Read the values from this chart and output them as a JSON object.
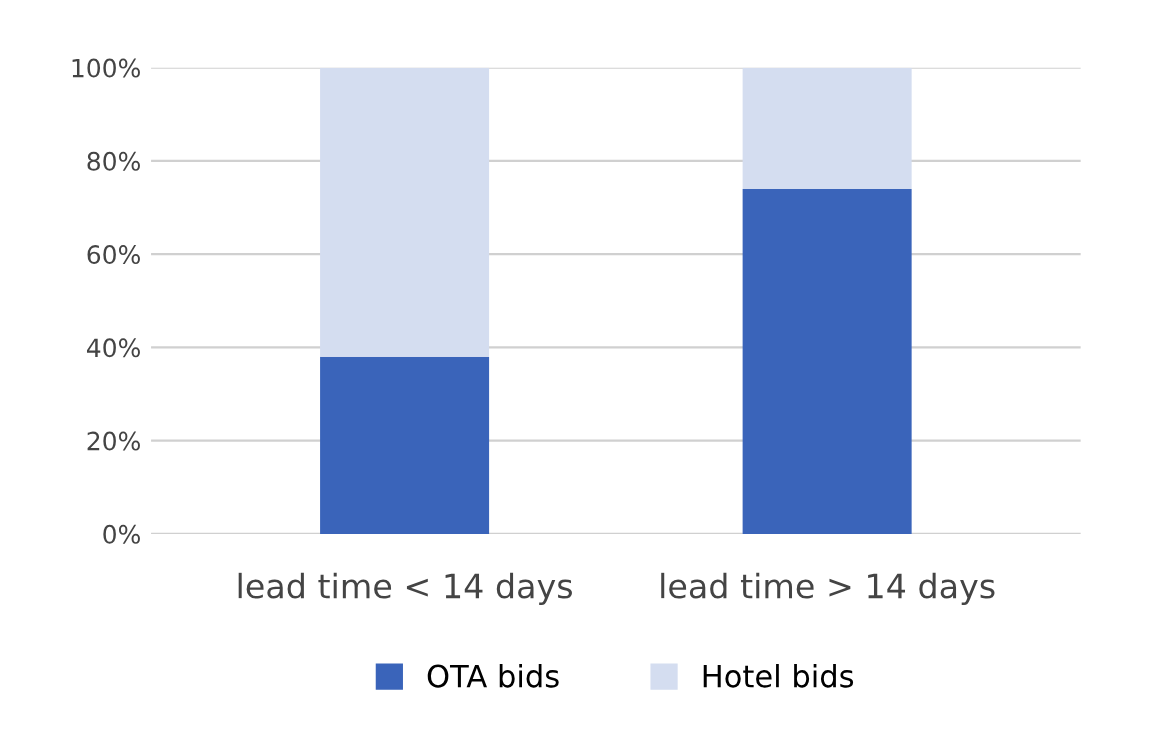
{
  "chart_data": {
    "type": "bar",
    "stacked": true,
    "categories": [
      "lead time < 14 days",
      "lead time > 14 days"
    ],
    "series": [
      {
        "name": "OTA bids",
        "color": "#3a64ba",
        "values": [
          38,
          74
        ]
      },
      {
        "name": "Hotel bids",
        "color": "#d4ddf0",
        "values": [
          62,
          26
        ]
      }
    ],
    "ylim": [
      0,
      100
    ],
    "yticks": [
      {
        "value": 0,
        "label": "0%"
      },
      {
        "value": 20,
        "label": "20%"
      },
      {
        "value": 40,
        "label": "40%"
      },
      {
        "value": 60,
        "label": "60%"
      },
      {
        "value": 80,
        "label": "80%"
      },
      {
        "value": 100,
        "label": "100%"
      }
    ],
    "grid": "y",
    "legend": "bottom"
  }
}
